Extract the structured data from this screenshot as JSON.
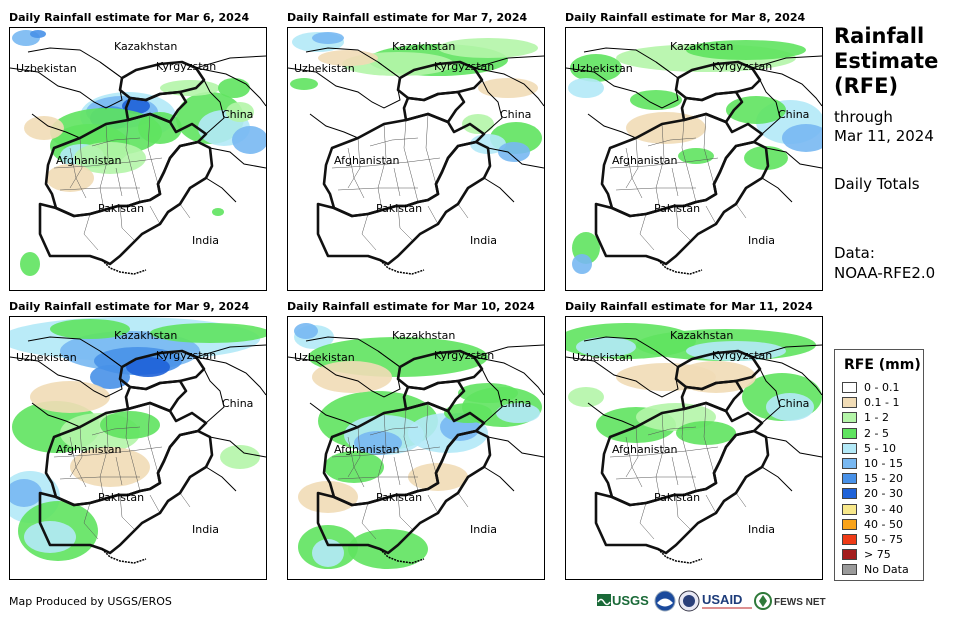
{
  "panels": [
    {
      "title": "Daily Rainfall estimate for Mar 6, 2024"
    },
    {
      "title": "Daily Rainfall estimate for Mar 7, 2024"
    },
    {
      "title": "Daily Rainfall estimate for Mar 8, 2024"
    },
    {
      "title": "Daily Rainfall estimate for Mar 9, 2024"
    },
    {
      "title": "Daily Rainfall estimate for Mar 10, 2024"
    },
    {
      "title": "Daily Rainfall estimate for Mar 11, 2024"
    }
  ],
  "map_labels": {
    "kazakhstan": "Kazakhstan",
    "uzbekistan": "Uzbekistan",
    "kyrgyzstan": "Kyrgyzstan",
    "china": "China",
    "afghanistan": "Afghanistan",
    "pakistan": "Pakistan",
    "india": "India"
  },
  "side": {
    "title_line1": "Rainfall",
    "title_line2": "Estimate",
    "title_line3": "(RFE)",
    "through_line1": "through",
    "through_line2": "Mar 11, 2024",
    "daily": "Daily Totals",
    "data_line1": "Data:",
    "data_line2": "NOAA-RFE2.0"
  },
  "legend": {
    "title": "RFE (mm)",
    "items": [
      {
        "label": "0 - 0.1",
        "color": "#ffffff"
      },
      {
        "label": "0.1 - 1",
        "color": "#f1dcb6"
      },
      {
        "label": "1 - 2",
        "color": "#b4f5a8"
      },
      {
        "label": "2 - 5",
        "color": "#5fe35f"
      },
      {
        "label": "5 - 10",
        "color": "#b3e9f7"
      },
      {
        "label": "10 - 15",
        "color": "#78b8f2"
      },
      {
        "label": "15 - 20",
        "color": "#4891e8"
      },
      {
        "label": "20 - 30",
        "color": "#1f62d8"
      },
      {
        "label": "30 - 40",
        "color": "#f8e88a"
      },
      {
        "label": "40 - 50",
        "color": "#f9a31a"
      },
      {
        "label": "50 - 75",
        "color": "#ef3b16"
      },
      {
        "label": "> 75",
        "color": "#a31d1d"
      },
      {
        "label": "No Data",
        "color": "#9a9a9a"
      }
    ]
  },
  "credit": "Map Produced by USGS/EROS",
  "logos": {
    "usgs": "USGS",
    "usaid": "USAID",
    "fews": "FEWS NET"
  }
}
